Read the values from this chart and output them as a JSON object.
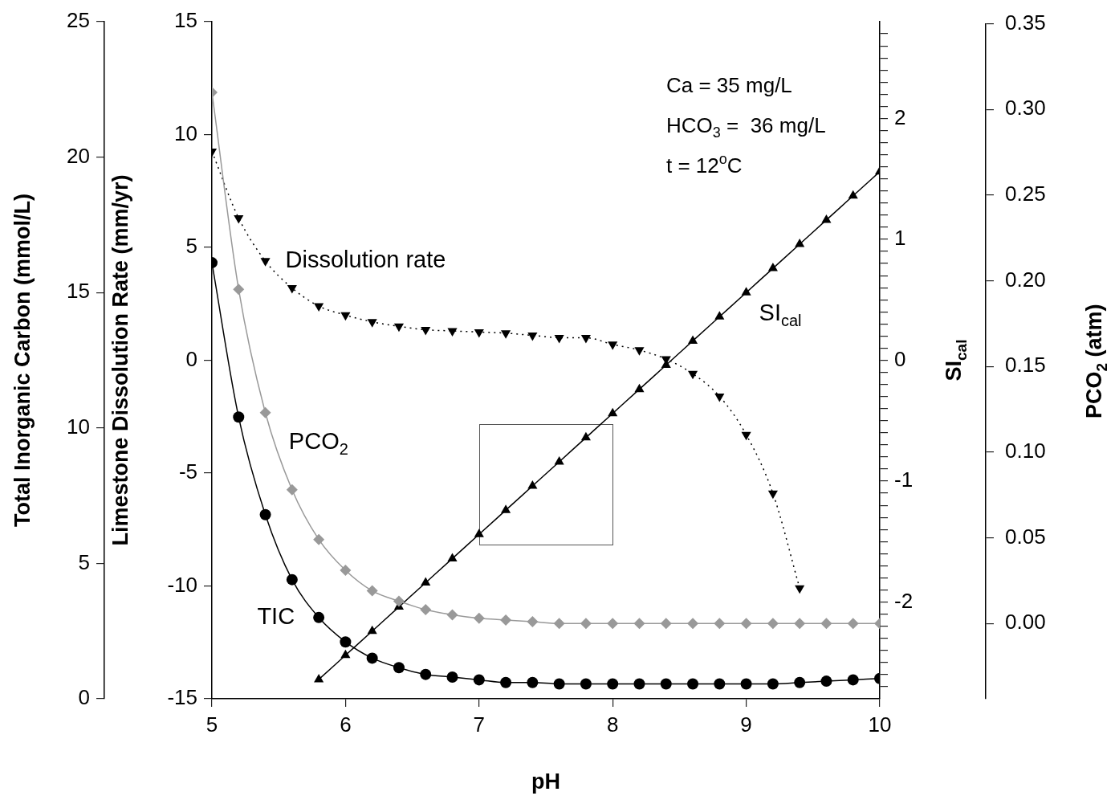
{
  "chart_data": [
    {
      "type": "line",
      "x": [
        5,
        5.2,
        5.4,
        5.6,
        5.8,
        6,
        6.2,
        6.4,
        6.6,
        6.8,
        7,
        7.2,
        7.4,
        7.6,
        7.8,
        8,
        8.2,
        8.4,
        8.6,
        8.8,
        9,
        9.2,
        9.4,
        9.6,
        9.8,
        10
      ],
      "series": [
        {
          "name": "Dissolution rate",
          "color": "#000000",
          "marker": "triangle-down",
          "line_style": "dotted",
          "values": [
            9.25,
            6.3,
            4.4,
            3.2,
            2.4,
            2.0,
            1.7,
            1.5,
            1.35,
            1.3,
            1.25,
            1.2,
            1.1,
            1.0,
            1.0,
            0.7,
            0.45,
            0.05,
            -0.6,
            -1.6,
            -3.3,
            -5.9,
            -10.1,
            null,
            null,
            null
          ]
        },
        {
          "name": "TIC",
          "color": "#000000",
          "axis": "y3",
          "marker": "circle",
          "line_style": "solid",
          "values": [
            16.1,
            10.4,
            6.8,
            4.4,
            3.0,
            2.1,
            1.5,
            1.15,
            0.9,
            0.8,
            0.7,
            0.6,
            0.6,
            0.55,
            0.55,
            0.55,
            0.55,
            0.55,
            0.55,
            0.55,
            0.55,
            0.55,
            0.6,
            0.65,
            0.7,
            0.75
          ]
        },
        {
          "name": "SI$_{cal}$",
          "color": "#000000",
          "axis": "y2",
          "marker": "triangle",
          "line_style": "solid",
          "values": [
            null,
            null,
            null,
            null,
            -2.64,
            -2.44,
            -2.24,
            -2.04,
            -1.84,
            -1.64,
            -1.44,
            -1.24,
            -1.04,
            -0.84,
            -0.64,
            -0.44,
            -0.24,
            -0.04,
            0.16,
            0.36,
            0.56,
            0.76,
            0.96,
            1.16,
            1.36,
            1.56
          ]
        }
      ],
      "xlim": [
        5,
        10
      ],
      "xticks": [
        5,
        6,
        7,
        8,
        9,
        10
      ],
      "xlabel": "pH",
      "ylim": [
        -15,
        15
      ],
      "yticks": [
        -15,
        -10,
        -5,
        0,
        5,
        10,
        15
      ],
      "ylabel": "Limestone Dissolution Rate (mm/yr)",
      "y2lim": [
        -2.8,
        2.8
      ],
      "y2label": "SI$_{cal}$",
      "y2ticks": [
        {
          "value": -2.7,
          "label": null
        },
        {
          "value": -2.6,
          "label": null
        },
        {
          "value": -2.5,
          "label": null
        },
        {
          "value": -2.4,
          "label": null
        },
        {
          "value": -2.3,
          "label": null
        },
        {
          "value": -2.2,
          "label": null
        },
        {
          "value": -2.1,
          "label": null
        },
        -2,
        {
          "value": -1.9,
          "label": null
        },
        {
          "value": -1.8,
          "label": null
        },
        {
          "value": -1.7,
          "label": null
        },
        {
          "value": -1.6,
          "label": null
        },
        {
          "value": -1.5,
          "label": null
        },
        {
          "value": -1.4,
          "label": null
        },
        {
          "value": -1.3,
          "label": null
        },
        {
          "value": -1.2,
          "label": null
        },
        {
          "value": -1.1,
          "label": null
        },
        -1,
        {
          "value": -0.9,
          "label": null
        },
        {
          "value": -0.8,
          "label": null
        },
        {
          "value": -0.7,
          "label": null
        },
        {
          "value": -0.6,
          "label": null
        },
        {
          "value": -0.5,
          "label": null
        },
        {
          "value": -0.4,
          "label": null
        },
        {
          "value": -0.3,
          "label": null
        },
        {
          "value": -0.2,
          "label": null
        },
        {
          "value": -0.1,
          "label": null
        },
        0,
        {
          "value": 0.1,
          "label": null
        },
        {
          "value": 0.2,
          "label": null
        },
        {
          "value": 0.3,
          "label": null
        },
        {
          "value": 0.4,
          "label": null
        },
        {
          "value": 0.5,
          "label": null
        },
        {
          "value": 0.6,
          "label": null
        },
        {
          "value": 0.7,
          "label": null
        },
        {
          "value": 0.8,
          "label": null
        },
        {
          "value": 0.9,
          "label": null
        },
        1,
        {
          "value": 1.1,
          "label": null
        },
        {
          "value": 1.2,
          "label": null
        },
        {
          "value": 1.3,
          "label": null
        },
        {
          "value": 1.4,
          "label": null
        },
        {
          "value": 1.5,
          "label": null
        },
        {
          "value": 1.6,
          "label": null
        },
        {
          "value": 1.7,
          "label": null
        },
        {
          "value": 1.8,
          "label": null
        },
        {
          "value": 1.9,
          "label": null
        },
        2,
        {
          "value": 2.1,
          "label": null
        },
        {
          "value": 2.2,
          "label": null
        },
        {
          "value": 2.3,
          "label": null
        },
        {
          "value": 2.4,
          "label": null
        },
        {
          "value": 2.5,
          "label": null
        },
        {
          "value": 2.6,
          "label": null
        },
        {
          "value": 2.7,
          "label": null
        }
      ],
      "y3lim": [
        0,
        25
      ],
      "y3ticks": [
        0,
        5,
        10,
        15,
        20,
        25
      ],
      "y3label": "Total Inorganic Carbon (mmol/L)",
      "annotations": [
        "Ca = 35 mg/L",
        "HCO$_{3}$ =  36 mg/L",
        "t = 12$^{o}$C"
      ],
      "grid": false,
      "legend": false
    },
    {
      "type": "line",
      "x": [
        5,
        5.2,
        5.4,
        5.6,
        5.8,
        6,
        6.2,
        6.4,
        6.6,
        6.8,
        7,
        7.2,
        7.4,
        7.6,
        7.8,
        8,
        8.2,
        8.4,
        8.6,
        8.8,
        9,
        9.2,
        9.4,
        9.6,
        9.8,
        10
      ],
      "series": [
        {
          "name": "PCO$_{2}$",
          "color": "#999999",
          "marker": "diamond",
          "line_style": "solid",
          "values": [
            0.31,
            0.195,
            0.123,
            0.078,
            0.049,
            0.031,
            0.019,
            0.013,
            0.008,
            0.005,
            0.003,
            0.002,
            0.001,
            0,
            0,
            0,
            0,
            0,
            0,
            0,
            0,
            0,
            0,
            0,
            0,
            0
          ]
        }
      ],
      "xlim": [
        5,
        10
      ],
      "ylim": [
        -0.044,
        0.35
      ],
      "yticks": [
        {
          "value": 0,
          "label": "0.00"
        },
        {
          "value": 0.05,
          "label": "0.05"
        },
        {
          "value": 0.1,
          "label": "0.10"
        },
        {
          "value": 0.15,
          "label": "0.15"
        },
        {
          "value": 0.2,
          "label": "0.20"
        },
        {
          "value": 0.25,
          "label": "0.25"
        },
        {
          "value": 0.3,
          "label": "0.30"
        },
        {
          "value": 0.35,
          "label": "0.35"
        }
      ],
      "ylabel": "PCO$_{2}$ (atm)",
      "tick_labels": "y",
      "grid": false,
      "legend": false
    }
  ]
}
